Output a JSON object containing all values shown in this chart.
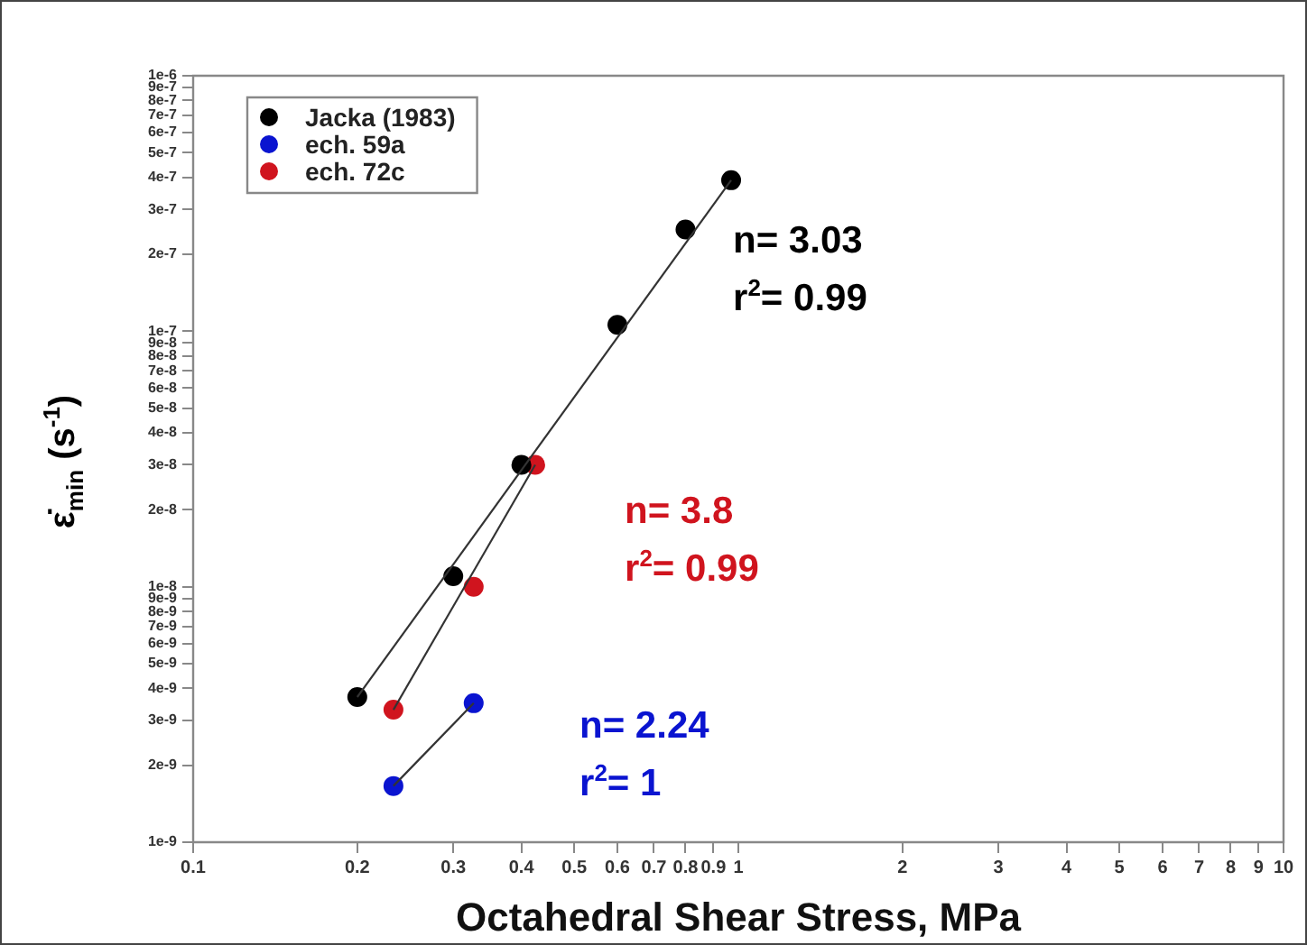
{
  "chart_data": {
    "type": "scatter",
    "xlabel": "Octahedral Shear Stress, MPa",
    "ylabel": "ε̇$_{min}$ (s$^{-1}$)",
    "log": "xy",
    "grid": false,
    "legend": "top left",
    "marker": "circle",
    "xlim": [
      0.1,
      10
    ],
    "ylim": [
      1e-09,
      1e-06
    ],
    "xticks": [
      0.1,
      0.2,
      0.3,
      0.4,
      0.5,
      0.6,
      0.7,
      0.8,
      0.9,
      1,
      2,
      3,
      4,
      5,
      6,
      7,
      8,
      9,
      10
    ],
    "yticks": [
      {
        "value": 1e-09,
        "label": "1e-9"
      },
      {
        "value": 2e-09,
        "label": "2e-9"
      },
      {
        "value": 3e-09,
        "label": "3e-9"
      },
      {
        "value": 4e-09,
        "label": "4e-9"
      },
      {
        "value": 5e-09,
        "label": "5e-9"
      },
      {
        "value": 6e-09,
        "label": "6e-9"
      },
      {
        "value": 7e-09,
        "label": "7e-9"
      },
      {
        "value": 8e-09,
        "label": "8e-9"
      },
      {
        "value": 9e-09,
        "label": "9e-9"
      },
      {
        "value": 1e-08,
        "label": "1e-8"
      },
      {
        "value": 2e-08,
        "label": "2e-8"
      },
      {
        "value": 3e-08,
        "label": "3e-8"
      },
      {
        "value": 4e-08,
        "label": "4e-8"
      },
      {
        "value": 5e-08,
        "label": "5e-8"
      },
      {
        "value": 6e-08,
        "label": "6e-8"
      },
      {
        "value": 7e-08,
        "label": "7e-8"
      },
      {
        "value": 8e-08,
        "label": "8e-8"
      },
      {
        "value": 9e-08,
        "label": "9e-8"
      },
      {
        "value": 1e-07,
        "label": "1e-7"
      },
      {
        "value": 2e-07,
        "label": "2e-7"
      },
      {
        "value": 3e-07,
        "label": "3e-7"
      },
      {
        "value": 4e-07,
        "label": "4e-7"
      },
      {
        "value": 5e-07,
        "label": "5e-7"
      },
      {
        "value": 6e-07,
        "label": "6e-7"
      },
      {
        "value": 7e-07,
        "label": "7e-7"
      },
      {
        "value": 8e-07,
        "label": "8e-7"
      },
      {
        "value": 9e-07,
        "label": "9e-7"
      },
      {
        "value": 1e-06,
        "label": "1e-6"
      }
    ],
    "series": [
      {
        "name": "Jacka (1983)",
        "color": "#000000",
        "x": [
          0.2,
          0.3,
          0.4,
          0.6,
          0.8,
          0.97
        ],
        "values": [
          3.7e-09,
          1.1e-08,
          3e-08,
          1.06e-07,
          2.5e-07,
          3.9e-07
        ]
      },
      {
        "name": "ech. 59a",
        "color": "#0a14d0",
        "x": [
          0.233,
          0.327
        ],
        "values": [
          1.66e-09,
          3.5e-09
        ]
      },
      {
        "name": "ech. 72c",
        "color": "#d0141e",
        "x": [
          0.233,
          0.327,
          0.424
        ],
        "values": [
          3.3e-09,
          1e-08,
          3e-08
        ]
      },
      {
        "type": "line",
        "color": "#333333",
        "marker": "none",
        "x": [
          0.2,
          0.97
        ],
        "values": [
          3.7e-09,
          3.9e-07
        ]
      },
      {
        "type": "line",
        "color": "#333333",
        "marker": "none",
        "x": [
          0.233,
          0.327
        ],
        "values": [
          1.66e-09,
          3.5e-09
        ]
      },
      {
        "type": "line",
        "color": "#333333",
        "marker": "none",
        "x": [
          0.233,
          0.424
        ],
        "values": [
          3.3e-09,
          3e-08
        ]
      }
    ],
    "annotations": [
      "n= 3.03",
      "r$^{2}$= 0.99",
      "n= 2.24",
      "r$^{2}$= 1",
      "n= 3.8",
      "r$^{2}$= 0.99"
    ]
  }
}
